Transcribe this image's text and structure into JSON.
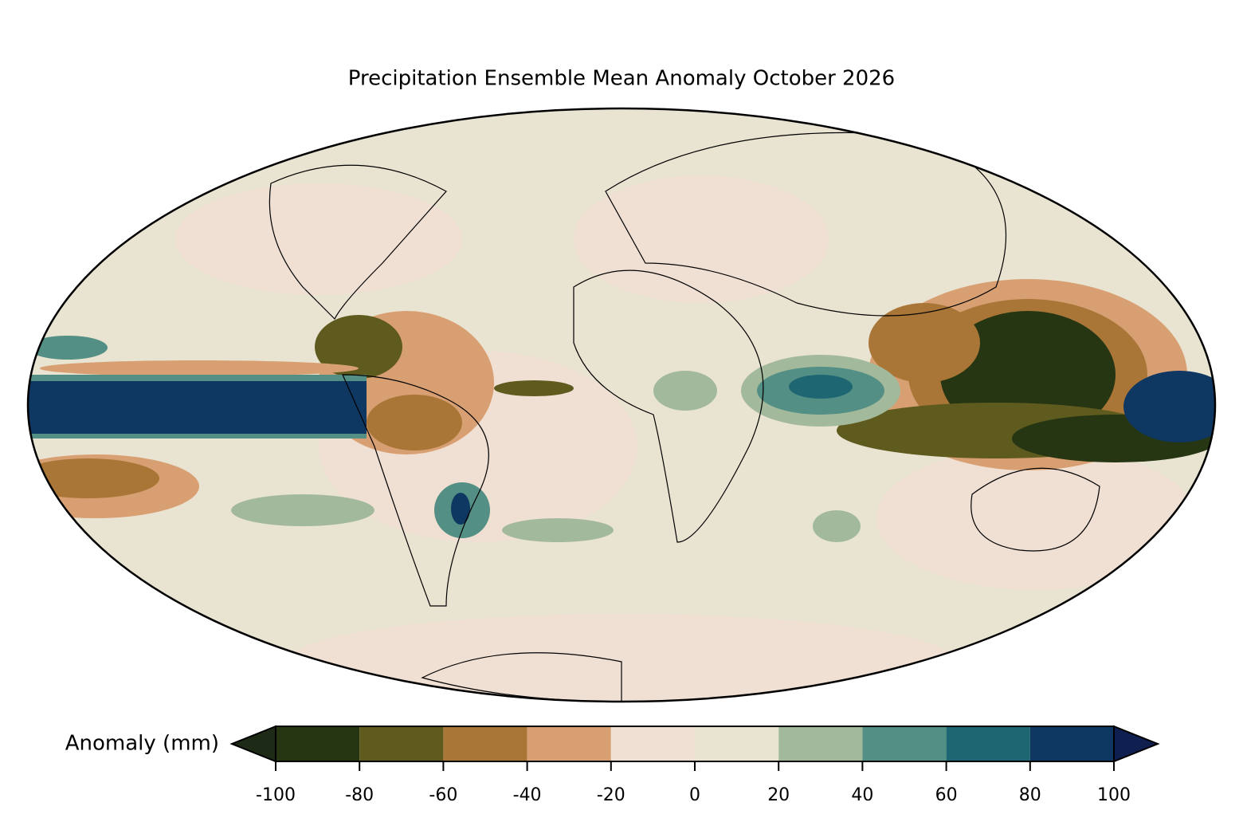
{
  "title": "Precipitation Ensemble Mean Anomaly October 2026",
  "colorbar": {
    "label": "Anomaly (mm)",
    "ticks": [
      -100,
      -80,
      -60,
      -40,
      -20,
      0,
      20,
      40,
      60,
      80,
      100
    ],
    "colors": [
      "#263612",
      "#5f5b1e",
      "#a97637",
      "#d8a072",
      "#f0dfd3",
      "#e9e3d2",
      "#a3b99c",
      "#538f84",
      "#1f6673",
      "#0e3761"
    ],
    "extend_colors": [
      "#1c2a16",
      "#0f1f4f"
    ]
  }
}
